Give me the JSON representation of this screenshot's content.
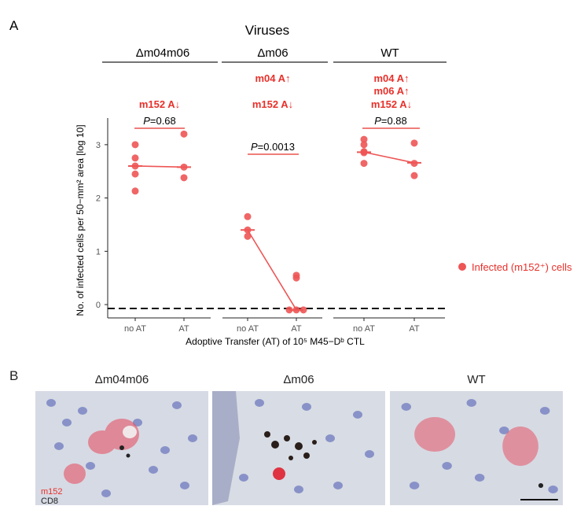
{
  "panel_a": {
    "letter": "A",
    "title": "Viruses",
    "groups": [
      {
        "label": "Δm04m06",
        "annotations": [
          "m152 A↓"
        ],
        "p_value": "=0.68"
      },
      {
        "label": "Δm06",
        "annotations": [
          "m04 A↑",
          "m152 A↓"
        ],
        "p_value": "=0.0013"
      },
      {
        "label": "WT",
        "annotations": [
          "m04 A↑",
          "m06 A↑",
          "m152 A↓"
        ],
        "p_value": "=0.88"
      }
    ],
    "p_symbol": "P",
    "legend": "Infected (m152⁺) cells",
    "xlabel": "Adoptive Transfer (AT) of 10⁵ M45−Dᵇ CTL",
    "ylabel": "No. of infected cells per 50−mm² area [log 10]"
  },
  "chart_data": {
    "type": "scatter",
    "categories": [
      "no AT",
      "AT",
      "no AT",
      "AT",
      "no AT",
      "AT"
    ],
    "groups": [
      "Δm04m06",
      "Δm04m06",
      "Δm06",
      "Δm06",
      "WT",
      "WT"
    ],
    "points": [
      [
        2.13,
        2.45,
        2.6,
        2.75,
        3.0
      ],
      [
        2.38,
        2.58,
        3.2
      ],
      [
        1.28,
        1.4,
        1.65
      ],
      [
        -0.1,
        -0.1,
        -0.1,
        0.5,
        0.55
      ],
      [
        2.65,
        2.85,
        2.87,
        3.0,
        3.1
      ],
      [
        2.42,
        2.65,
        3.03
      ]
    ],
    "medians": [
      2.6,
      2.58,
      1.4,
      -0.1,
      2.86,
      2.66
    ],
    "ylim": [
      -0.25,
      3.5
    ],
    "yticks": [
      0,
      1,
      2,
      3
    ],
    "reference_line": 0,
    "color": "#ee5555"
  },
  "panel_b": {
    "letter": "B",
    "images": [
      {
        "title": "Δm04m06"
      },
      {
        "title": "Δm06"
      },
      {
        "title": "WT"
      }
    ],
    "stain_labels": [
      "m152",
      "CD8"
    ],
    "colors": {
      "m152": "#e8302a",
      "cd8": "#222222"
    }
  }
}
